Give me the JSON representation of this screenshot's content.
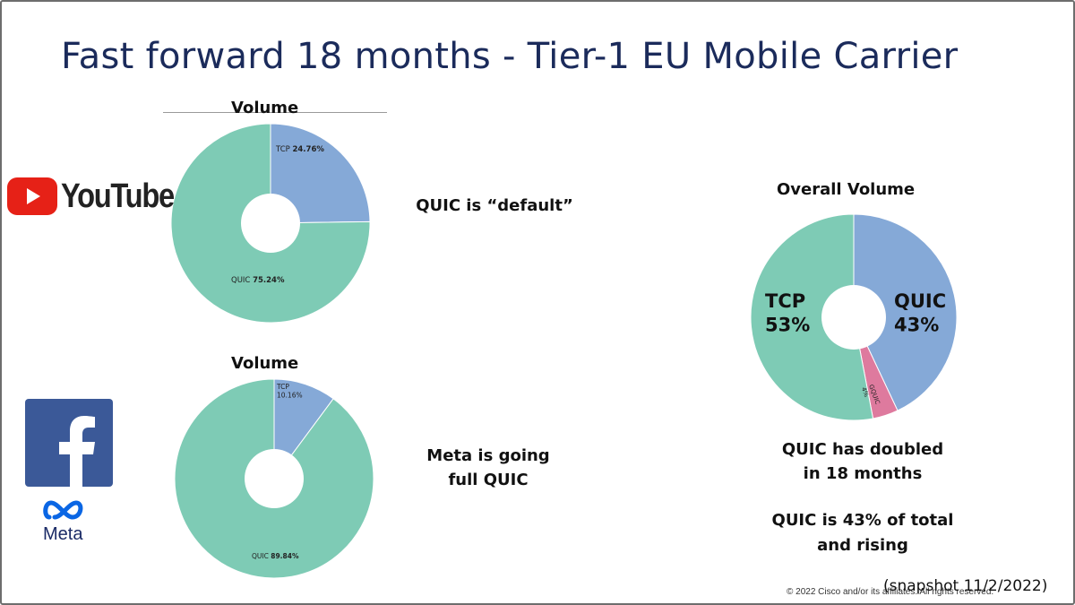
{
  "slide": {
    "title": "Fast forward 18 months - Tier-1 EU Mobile Carrier",
    "footer": "© 2022  Cisco and/or its affiliates. All rights reserved.",
    "snapshot": "(snapshot 11/2/2022)"
  },
  "logos": {
    "youtube": {
      "wordmark": "YouTube",
      "icon": "youtube-play-icon",
      "color": "#e62117"
    },
    "facebook": {
      "letter": "f",
      "icon": "facebook-icon",
      "color": "#3b5998"
    },
    "meta": {
      "wordmark": "Meta",
      "icon": "meta-infinity-icon",
      "color": "#0a66e4"
    }
  },
  "notes": {
    "youtube": "QUIC is “default”",
    "meta_line1": "Meta is going",
    "meta_line2": "full QUIC",
    "overall1_line1": "QUIC has doubled",
    "overall1_line2": "in 18 months",
    "overall2_line1": "QUIC is 43% of total",
    "overall2_line2": "and rising"
  },
  "colors": {
    "quic_green": "#7ecbb5",
    "tcp_blue": "#85a9d7",
    "other_pink": "#de7a9e"
  },
  "chart_data": [
    {
      "type": "pie",
      "title": "Volume",
      "slices": [
        {
          "label": "TCP",
          "value": 24.76,
          "display": "24.76%",
          "color": "#85a9d7"
        },
        {
          "label": "QUIC",
          "value": 75.24,
          "display": "75.24%",
          "color": "#7ecbb5"
        }
      ]
    },
    {
      "type": "pie",
      "title": "Volume",
      "slices": [
        {
          "label": "TCP",
          "value": 10.16,
          "display": "10.16%",
          "color": "#85a9d7"
        },
        {
          "label": "QUIC",
          "value": 89.84,
          "display": "89.84%",
          "color": "#7ecbb5"
        }
      ]
    },
    {
      "type": "pie",
      "title": "Overall Volume",
      "slices": [
        {
          "label": "QUIC",
          "value": 43,
          "display": "43%",
          "color": "#85a9d7"
        },
        {
          "label": "GQUIC",
          "value": 4,
          "display": "4%",
          "color": "#de7a9e"
        },
        {
          "label": "TCP",
          "value": 53,
          "display": "53%",
          "color": "#7ecbb5"
        }
      ]
    }
  ]
}
